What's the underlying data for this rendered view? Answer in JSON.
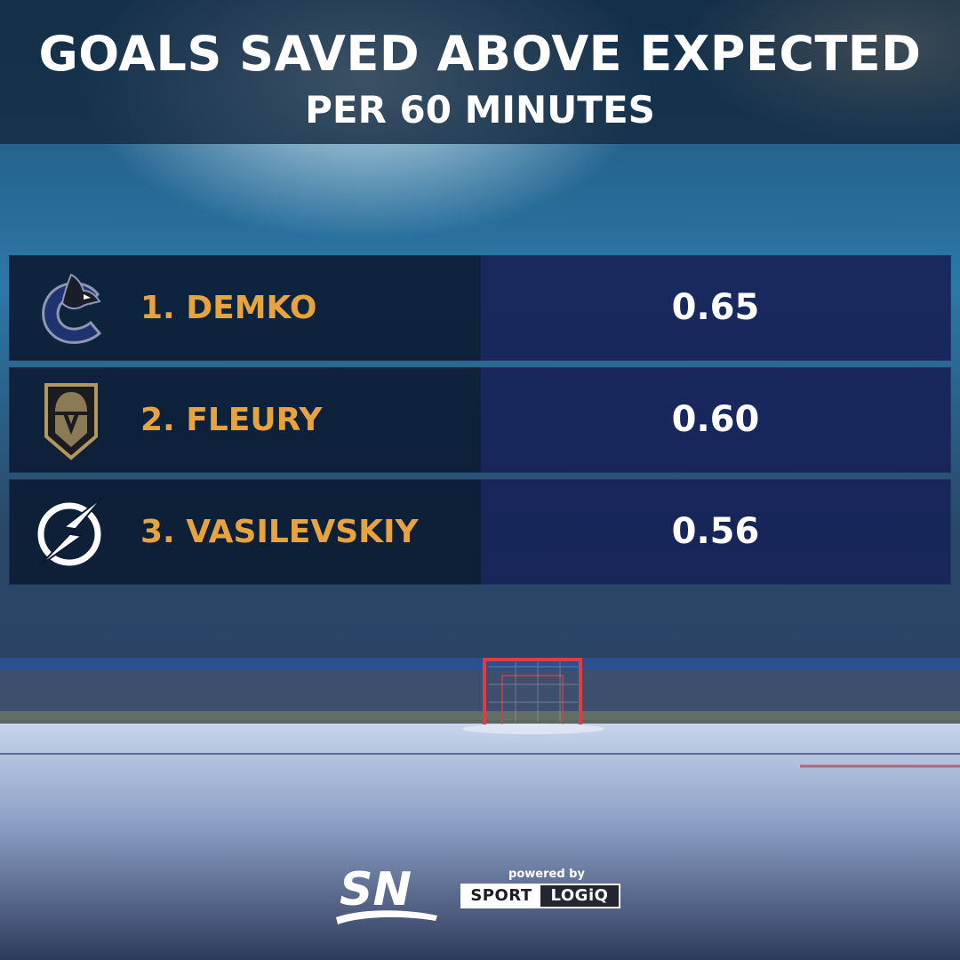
{
  "header": {
    "title": "GOALS SAVED ABOVE EXPECTED",
    "subtitle": "PER 60 MINUTES"
  },
  "chart_data": {
    "type": "table",
    "title": "GOALS SAVED ABOVE EXPECTED",
    "subtitle": "PER 60 MINUTES",
    "rows": [
      {
        "label": "1. DEMKO",
        "value": "0.65",
        "logo": "canucks-logo"
      },
      {
        "label": "2. FLEURY",
        "value": "0.60",
        "logo": "golden-knights-logo"
      },
      {
        "label": "3. VASILEVSKIY",
        "value": "0.56",
        "logo": "lightning-logo"
      }
    ]
  },
  "footer": {
    "sn_text": "SN",
    "powered_by": "powered by",
    "sponsor_word1": "SPORT",
    "sponsor_word2": "LOGiQ"
  },
  "colors": {
    "accent_name": "#e6a33e",
    "value_text": "#ffffff",
    "row_left": "#0c1c34",
    "row_right": "#162358"
  }
}
